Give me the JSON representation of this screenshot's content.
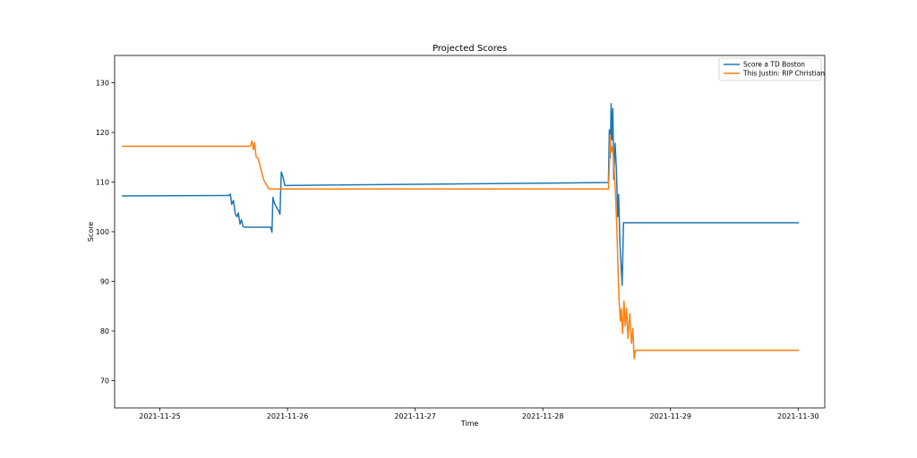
{
  "chart_data": {
    "type": "line",
    "title": "Projected Scores",
    "xlabel": "Time",
    "ylabel": "Score",
    "x_is_date": true,
    "xlim": [
      "2021-11-24T15:30",
      "2021-11-30T05:00"
    ],
    "ylim": [
      64.5,
      135.5
    ],
    "x_ticks": [
      "2021-11-25",
      "2021-11-26",
      "2021-11-27",
      "2021-11-28",
      "2021-11-29",
      "2021-11-30"
    ],
    "y_ticks": [
      70,
      80,
      90,
      100,
      110,
      120,
      130
    ],
    "grid": false,
    "legend_position": "top-right",
    "series": [
      {
        "name": "Score a TD Boston",
        "color": "#1f77b4",
        "points": [
          [
            "2021-11-24T17:00",
            107.2
          ],
          [
            "2021-11-25T13:00",
            107.3
          ],
          [
            "2021-11-25T13:15",
            107.6
          ],
          [
            "2021-11-25T13:30",
            105.5
          ],
          [
            "2021-11-25T13:50",
            106.3
          ],
          [
            "2021-11-25T14:10",
            103.6
          ],
          [
            "2021-11-25T14:30",
            103.0
          ],
          [
            "2021-11-25T14:45",
            103.8
          ],
          [
            "2021-11-25T15:05",
            101.5
          ],
          [
            "2021-11-25T15:20",
            102.4
          ],
          [
            "2021-11-25T15:40",
            101.0
          ],
          [
            "2021-11-25T16:00",
            100.9
          ],
          [
            "2021-11-25T20:50",
            100.9
          ],
          [
            "2021-11-25T21:05",
            99.9
          ],
          [
            "2021-11-25T21:15",
            106.9
          ],
          [
            "2021-11-25T21:35",
            105.6
          ],
          [
            "2021-11-25T22:00",
            104.8
          ],
          [
            "2021-11-25T22:20",
            104.2
          ],
          [
            "2021-11-25T22:35",
            103.5
          ],
          [
            "2021-11-25T22:50",
            112.0
          ],
          [
            "2021-11-25T23:10",
            111.0
          ],
          [
            "2021-11-25T23:30",
            109.3
          ],
          [
            "2021-11-28T12:20",
            109.9
          ],
          [
            "2021-11-28T12:30",
            120.5
          ],
          [
            "2021-11-28T12:40",
            114.8
          ],
          [
            "2021-11-28T12:50",
            125.8
          ],
          [
            "2021-11-28T13:00",
            118.5
          ],
          [
            "2021-11-28T13:10",
            124.8
          ],
          [
            "2021-11-28T13:20",
            110.5
          ],
          [
            "2021-11-28T13:35",
            117.8
          ],
          [
            "2021-11-28T13:50",
            112.5
          ],
          [
            "2021-11-28T14:05",
            103.0
          ],
          [
            "2021-11-28T14:15",
            107.5
          ],
          [
            "2021-11-28T14:30",
            97.5
          ],
          [
            "2021-11-28T14:45",
            92.5
          ],
          [
            "2021-11-28T14:55",
            89.2
          ],
          [
            "2021-11-28T15:10",
            101.8
          ],
          [
            "2021-11-30T00:00",
            101.8
          ]
        ]
      },
      {
        "name": "This Justin: RIP Christian",
        "color": "#ff7f0e",
        "points": [
          [
            "2021-11-24T17:00",
            117.2
          ],
          [
            "2021-11-25T17:00",
            117.2
          ],
          [
            "2021-11-25T17:20",
            118.3
          ],
          [
            "2021-11-25T17:35",
            116.5
          ],
          [
            "2021-11-25T17:50",
            117.9
          ],
          [
            "2021-11-25T18:05",
            115.2
          ],
          [
            "2021-11-25T18:30",
            114.7
          ],
          [
            "2021-11-25T19:30",
            110.5
          ],
          [
            "2021-11-25T20:30",
            108.6
          ],
          [
            "2021-11-28T12:20",
            108.6
          ],
          [
            "2021-11-28T12:30",
            113.0
          ],
          [
            "2021-11-28T12:40",
            119.5
          ],
          [
            "2021-11-28T12:50",
            116.0
          ],
          [
            "2021-11-28T13:05",
            117.2
          ],
          [
            "2021-11-28T13:20",
            114.0
          ],
          [
            "2021-11-28T13:40",
            107.5
          ],
          [
            "2021-11-28T13:55",
            100.5
          ],
          [
            "2021-11-28T14:10",
            91.5
          ],
          [
            "2021-11-28T14:20",
            86.0
          ],
          [
            "2021-11-28T14:35",
            82.0
          ],
          [
            "2021-11-28T14:45",
            84.5
          ],
          [
            "2021-11-28T15:00",
            79.5
          ],
          [
            "2021-11-28T15:15",
            86.0
          ],
          [
            "2021-11-28T15:30",
            81.0
          ],
          [
            "2021-11-28T15:45",
            84.5
          ],
          [
            "2021-11-28T16:00",
            78.5
          ],
          [
            "2021-11-28T16:20",
            83.5
          ],
          [
            "2021-11-28T16:40",
            77.5
          ],
          [
            "2021-11-28T16:55",
            80.5
          ],
          [
            "2021-11-28T17:10",
            74.4
          ],
          [
            "2021-11-28T17:25",
            76.1
          ],
          [
            "2021-11-30T00:00",
            76.1
          ]
        ]
      }
    ]
  }
}
